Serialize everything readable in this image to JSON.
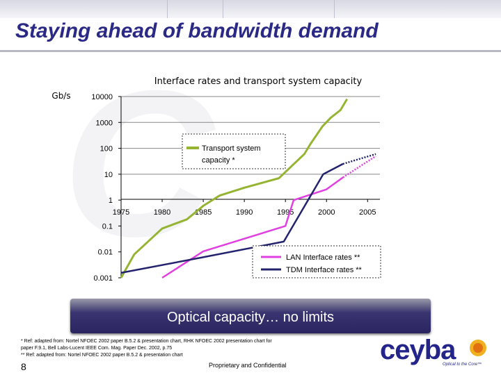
{
  "slide": {
    "title": "Staying ahead of bandwidth demand",
    "banner_text": "Optical capacity… no limits",
    "footnotes": [
      "* Ref: adapted from: Nortel NFOEC 2002 paper B.5.2 & presentation chart, RHK NFOEC 2002 presentation chart for",
      "paper F.9.1, Bell Labs-Lucent IEEE Com. Mag. Paper Dec. 2002, p.75",
      "** Ref: adapted from: Nortel NFOEC 2002 paper B.5.2 & presentation chart"
    ],
    "slide_number": "8",
    "confidential": "Proprietary and Confidential",
    "logo_text": "ceyba",
    "logo_tagline": "Optical to the Core™"
  },
  "colors": {
    "title": "#2a2a86",
    "transport": "#95b532",
    "lan": "#e040e0",
    "tdm": "#23236e"
  },
  "chart_data": {
    "type": "line",
    "title": "Interface rates and transport system capacity",
    "ylabel": "Gb/s",
    "xlabel": "",
    "y_scale": "log",
    "xlim": [
      1975,
      2006.5
    ],
    "ylim": [
      0.001,
      10000
    ],
    "x_ticks": [
      1975,
      1980,
      1985,
      1990,
      1995,
      2000,
      2005
    ],
    "x_tick_labels": [
      "1975",
      "1980",
      "1985",
      "1990",
      "1995",
      "2000",
      "2005"
    ],
    "y_ticks": [
      0.001,
      0.01,
      0.1,
      1,
      10,
      100,
      1000,
      10000
    ],
    "y_tick_labels": [
      "0.001",
      "0.01",
      "0.1",
      "1",
      "10",
      "100",
      "1000",
      "10000"
    ],
    "gridlines": "horizontal",
    "series": [
      {
        "name": "Transport system capacity *",
        "color": "#95b532",
        "style": "solid",
        "points": [
          [
            1975,
            0.001
          ],
          [
            1976.6,
            0.008
          ],
          [
            1980,
            0.08
          ],
          [
            1983,
            0.18
          ],
          [
            1985,
            0.6
          ],
          [
            1987,
            1.5
          ],
          [
            1990,
            3
          ],
          [
            1994.2,
            7
          ],
          [
            1996.3,
            30
          ],
          [
            1997.3,
            60
          ],
          [
            1998,
            140
          ],
          [
            1999.5,
            700
          ],
          [
            2000.5,
            1500
          ],
          [
            2001.7,
            3000
          ],
          [
            2002.5,
            8000
          ]
        ]
      },
      {
        "name": "LAN Interface rates **",
        "color": "#e040e0",
        "style": "solid",
        "points": [
          [
            1980,
            0.001
          ],
          [
            1985,
            0.0105
          ],
          [
            1995,
            0.1
          ],
          [
            1996,
            1
          ],
          [
            2000,
            2.6
          ],
          [
            2002,
            7.5
          ]
        ],
        "projection": [
          [
            2002,
            7.5
          ],
          [
            2006,
            50
          ]
        ]
      },
      {
        "name": "TDM Interface rates **",
        "color": "#23236e",
        "style": "solid",
        "points": [
          [
            1975,
            0.00155
          ],
          [
            1985,
            0.00622
          ],
          [
            1994.8,
            0.025
          ],
          [
            1999.6,
            10
          ],
          [
            2002,
            25
          ]
        ],
        "projection": [
          [
            2002,
            25
          ],
          [
            2006,
            60
          ]
        ]
      }
    ],
    "legends": [
      {
        "entries": [
          "Transport system capacity *"
        ],
        "placement": "upper-middle",
        "style": "dotted-box"
      },
      {
        "entries": [
          "LAN Interface rates **",
          "TDM Interface rates **"
        ],
        "placement": "bottom-right",
        "style": "dotted-box"
      }
    ]
  }
}
